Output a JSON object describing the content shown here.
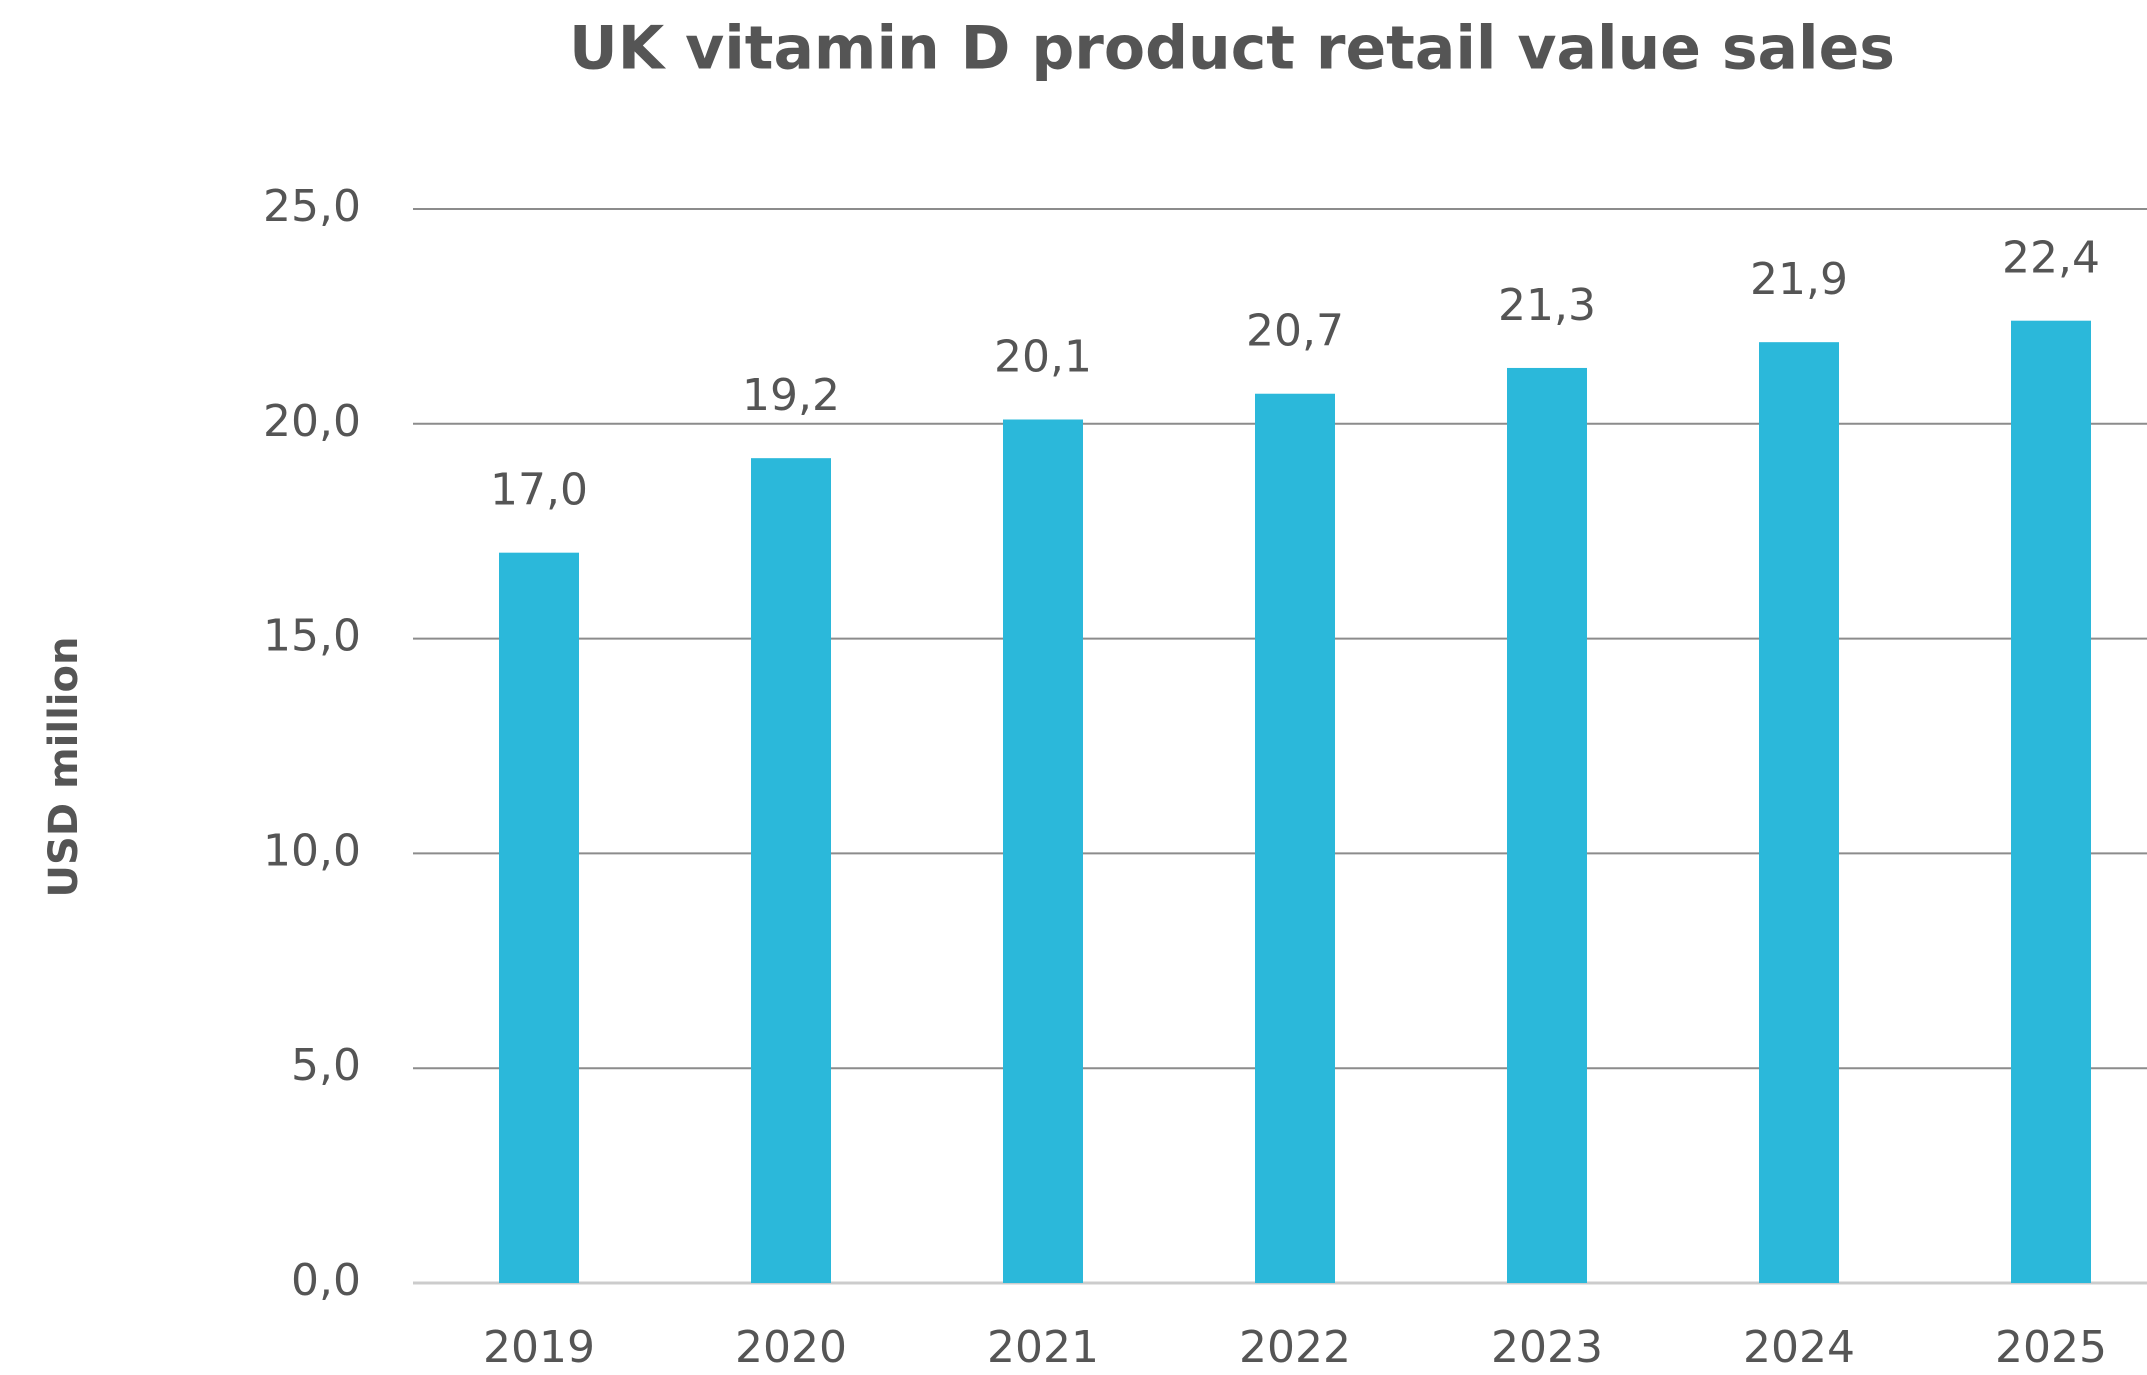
{
  "chart_data": {
    "type": "bar",
    "title": "UK vitamin D product retail value sales",
    "y_axis_label": "USD million",
    "categories": [
      "2019",
      "2020",
      "2021",
      "2022",
      "2023",
      "2024",
      "2025"
    ],
    "values": [
      17.0,
      19.2,
      20.1,
      20.7,
      21.3,
      21.9,
      22.4
    ],
    "value_labels": [
      "17,0",
      "19,2",
      "20,1",
      "20,7",
      "21,3",
      "21,9",
      "22,4"
    ],
    "color": "#2bb8da",
    "ylim": [
      0,
      25
    ],
    "yticks": [
      {
        "value": 0,
        "label": "0,0"
      },
      {
        "value": 5,
        "label": "5,0"
      },
      {
        "value": 10,
        "label": "10,0"
      },
      {
        "value": 15,
        "label": "15,0"
      },
      {
        "value": 20,
        "label": "20,0"
      },
      {
        "value": 25,
        "label": "25,0"
      }
    ],
    "grid": true
  }
}
